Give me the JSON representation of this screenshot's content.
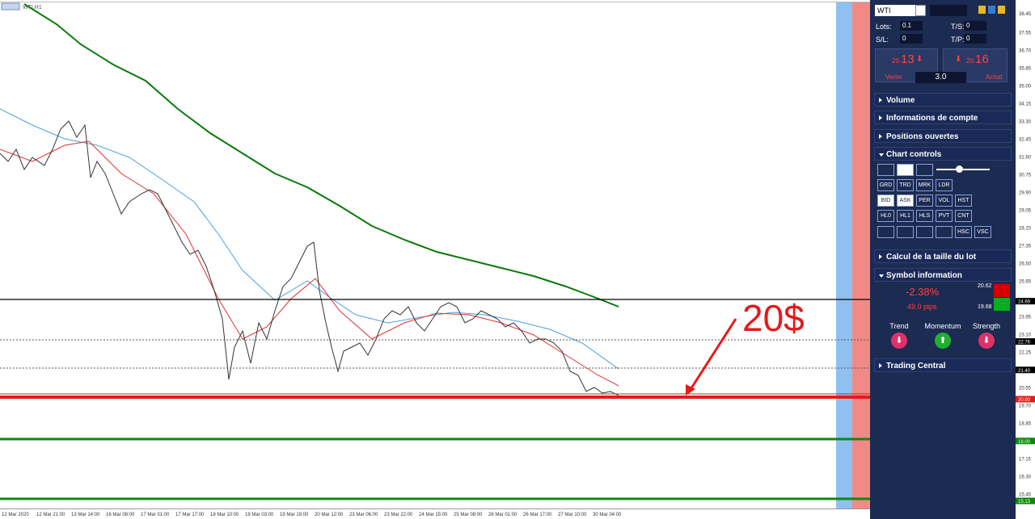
{
  "chart_window": {
    "title": "WTI,H1",
    "annotation": "20$",
    "price_labels": [
      "38.45",
      "37.55",
      "36.70",
      "35.85",
      "35.00",
      "34.15",
      "33.30",
      "32.45",
      "31.60",
      "30.75",
      "29.90",
      "29.05",
      "28.20",
      "27.35",
      "26.50",
      "25.65",
      "23.95",
      "23.10",
      "22.25",
      "20.55",
      "19.70",
      "18.85",
      "17.15",
      "16.30",
      "15.45"
    ],
    "level_labels": [
      {
        "label": "24.69",
        "color": "#000000"
      },
      {
        "label": "22.76",
        "color": "#000000"
      },
      {
        "label": "21.40",
        "color": "#000000"
      },
      {
        "label": "20.00",
        "color": "#e31b1b"
      },
      {
        "label": "18.00",
        "color": "#0a8a0a"
      },
      {
        "label": "15.13",
        "color": "#0a8a0a"
      }
    ],
    "time_labels": [
      "12 Mar 2020",
      "12 Mar 21:00",
      "13 Mar 14:00",
      "16 Mar 08:00",
      "17 Mar 01:00",
      "17 Mar 17:00",
      "18 Mar 10:00",
      "19 Mar 03:00",
      "19 Mar 19:00",
      "20 Mar 12:00",
      "23 Mar 06:00",
      "23 Mar 22:00",
      "24 Mar 15:00",
      "25 Mar 08:00",
      "26 Mar 01:00",
      "26 Mar 17:00",
      "27 Mar 10:00",
      "30 Mar 04:00"
    ]
  },
  "panel": {
    "symbol": "WTI",
    "lots_label": "Lots:",
    "lots": "0.1",
    "ts_label": "T/S:",
    "ts": "0",
    "sl_label": "S/L:",
    "sl": "0",
    "tp_label": "T/P:",
    "tp": "0",
    "sell": {
      "prefix": "20.",
      "price": "13",
      "label": "Vente"
    },
    "spread": "3.0",
    "buy": {
      "prefix": "20.",
      "price": "16",
      "label": "Achat"
    },
    "sections": [
      "Volume",
      "Informations de compte",
      "Positions ouvertes",
      "Chart controls"
    ],
    "button_rows": [
      [
        "GRD",
        "TRD",
        "MRK",
        "LDR"
      ],
      [
        "BID",
        "ASK",
        "PER",
        "VOL",
        "HST"
      ],
      [
        "HL0",
        "HL1",
        "HLS",
        "PVT",
        "CNT"
      ],
      [
        "HSC",
        "VSC"
      ]
    ],
    "lot_section": "Calcul de la taille du lot",
    "symbol_section": "Symbol information",
    "change": "-2.38%",
    "pips": "49.0 pips",
    "high": "20.62",
    "low": "19.68",
    "indicators": [
      "Trend",
      "Momentum",
      "Strength"
    ],
    "trading_central": "Trading Central"
  }
}
